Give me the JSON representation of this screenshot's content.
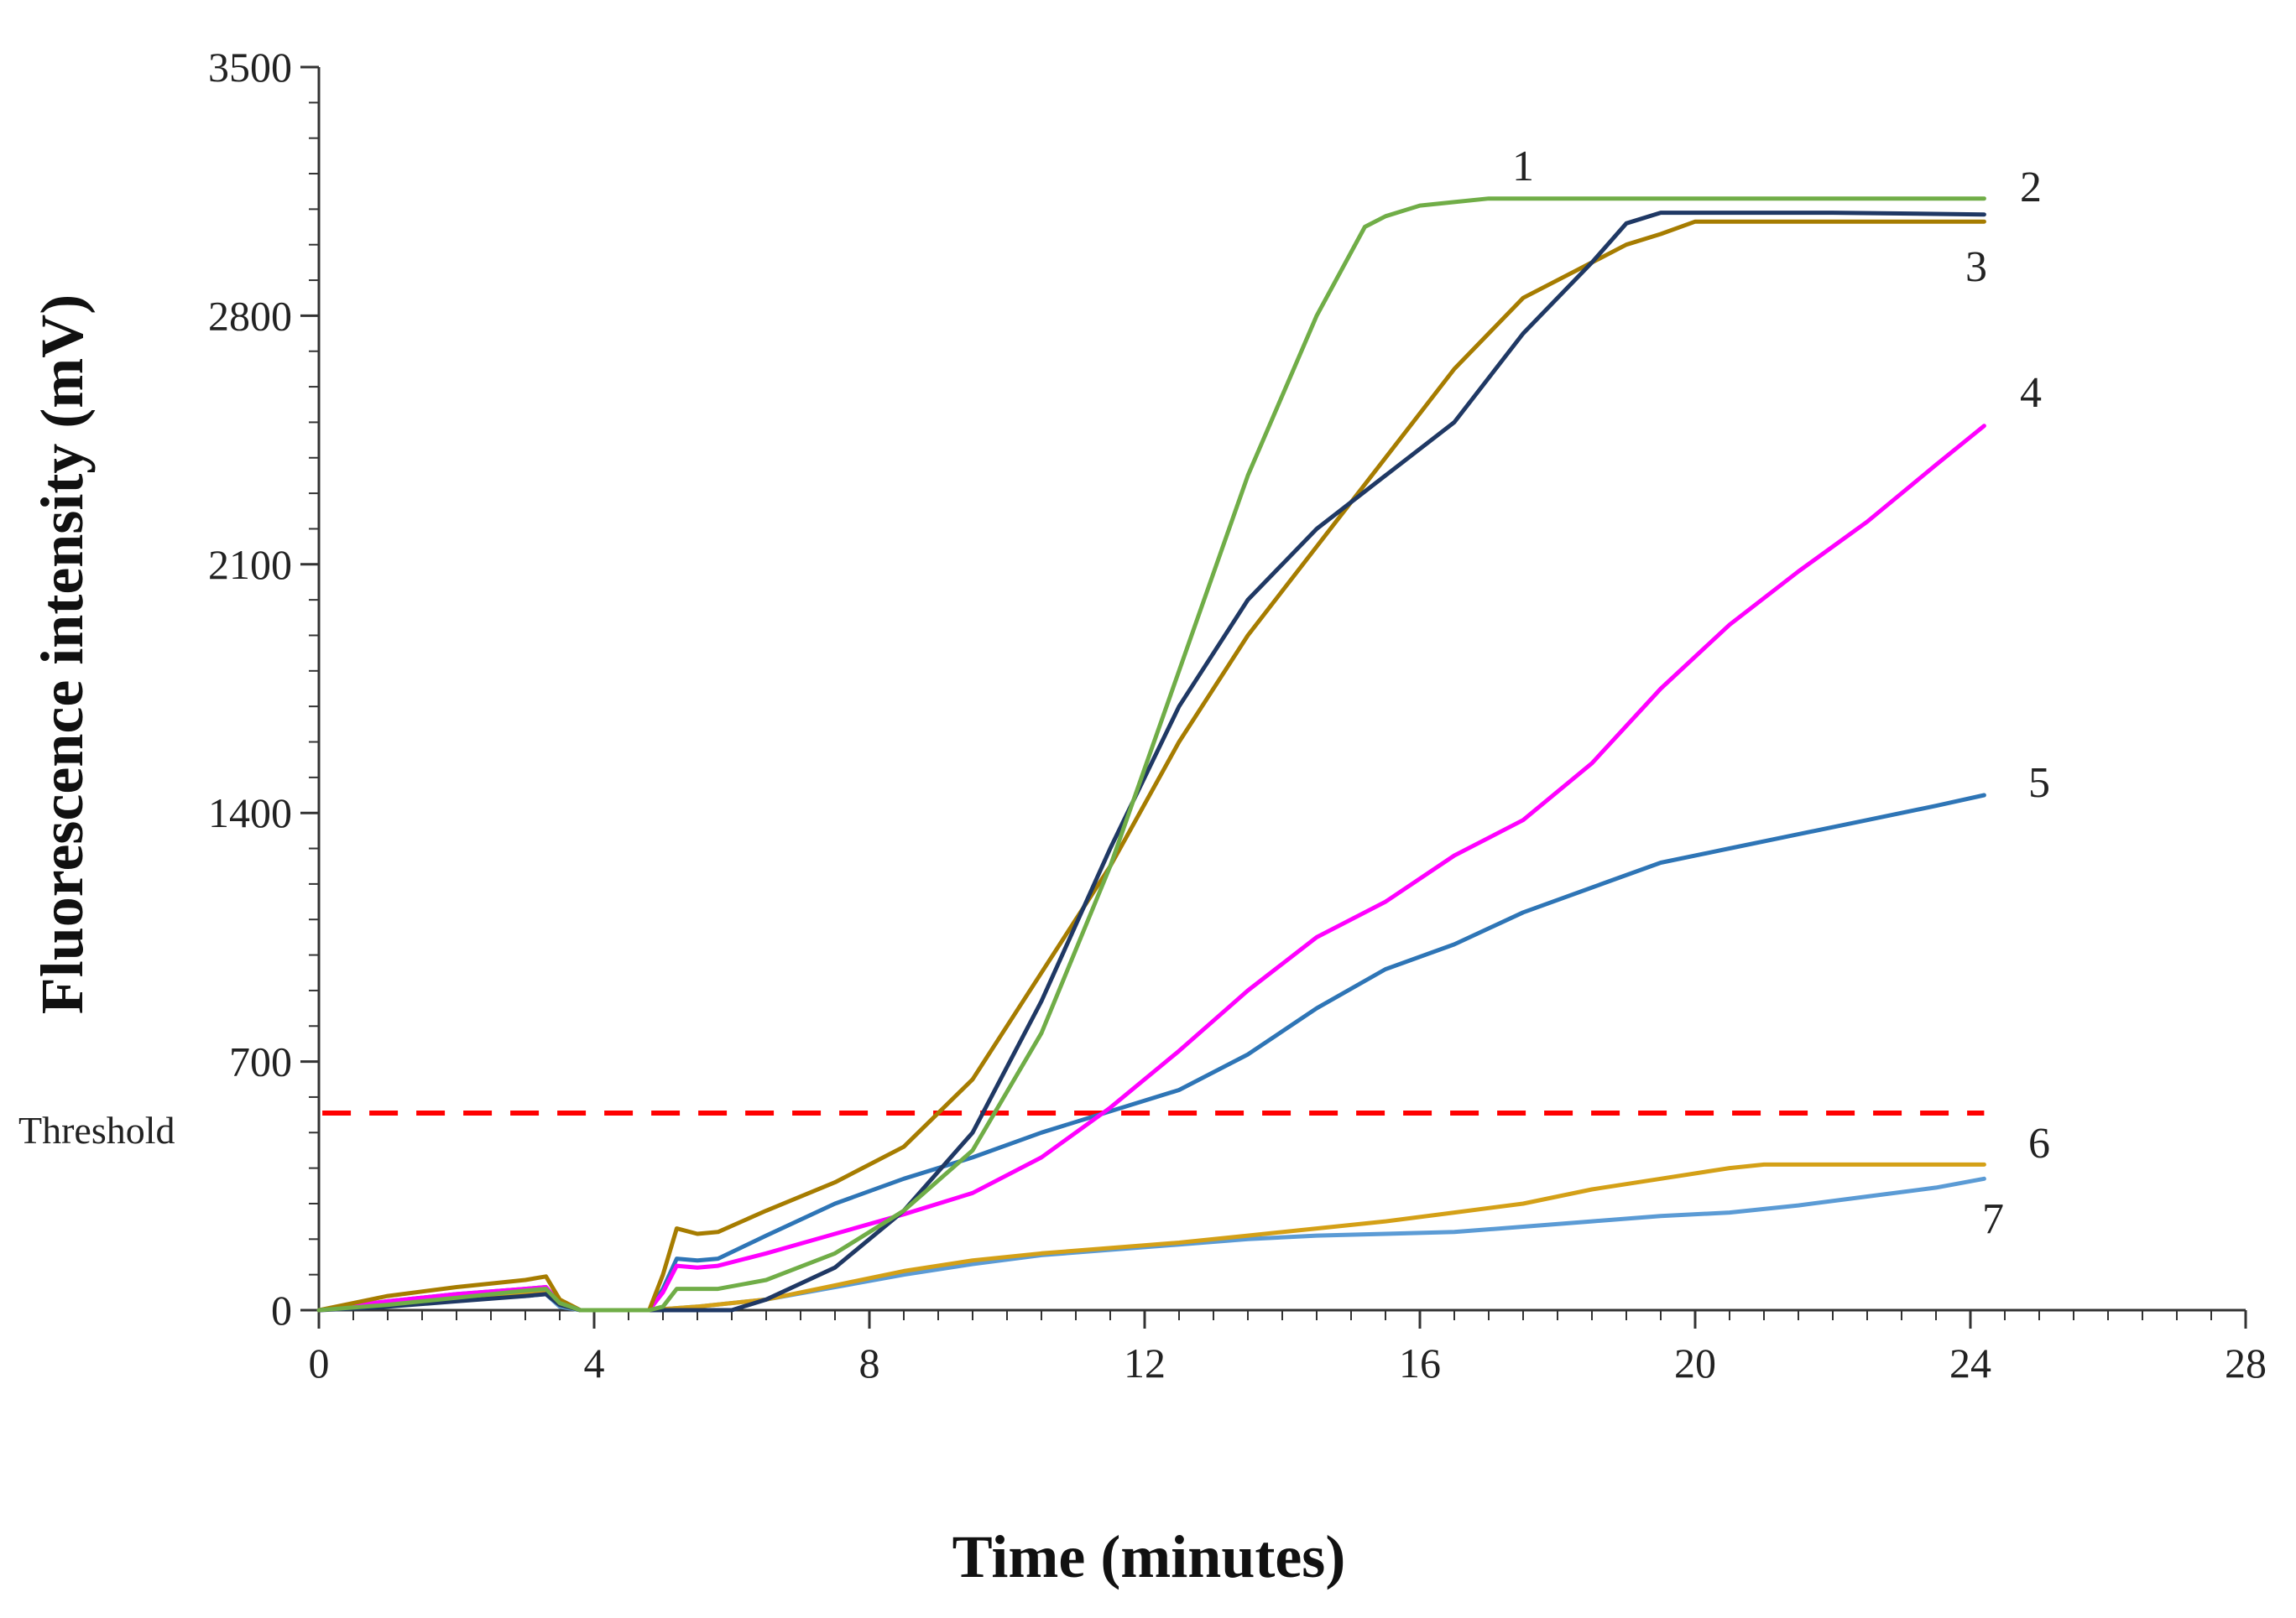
{
  "chart_data": {
    "type": "line",
    "title": "",
    "xlabel": "Time (minutes)",
    "ylabel": "Fluorescence intensity (mV)",
    "xlim": [
      0,
      28
    ],
    "ylim": [
      0,
      3500
    ],
    "xticks": [
      0,
      4,
      8,
      12,
      16,
      20,
      24,
      28
    ],
    "yticks": [
      0,
      700,
      1400,
      2100,
      2800,
      3500
    ],
    "grid": false,
    "threshold": {
      "label": "Threshold",
      "value": 555,
      "x_end": 24.2,
      "color": "#ff0000"
    },
    "series": [
      {
        "name": "1",
        "color": "#70ad47",
        "x": [
          0,
          1,
          2,
          3,
          3.3,
          3.5,
          3.8,
          4.8,
          5.0,
          5.2,
          5.8,
          6.5,
          7.5,
          8.5,
          9.5,
          10.5,
          11.5,
          12.5,
          13.5,
          14.5,
          15.2,
          15.5,
          16,
          16.5,
          17,
          18,
          20,
          22,
          24.2
        ],
        "y": [
          0,
          15,
          35,
          55,
          60,
          20,
          0,
          0,
          10,
          60,
          60,
          85,
          160,
          280,
          450,
          780,
          1250,
          1800,
          2350,
          2800,
          3050,
          3080,
          3110,
          3120,
          3130,
          3130,
          3130,
          3130,
          3130
        ]
      },
      {
        "name": "2",
        "color": "#1f3864",
        "x": [
          0,
          1,
          2,
          3,
          3.3,
          3.5,
          3.8,
          4.8,
          5.0,
          5.5,
          6.0,
          6.5,
          7.5,
          8.5,
          9.5,
          10.5,
          11.5,
          12.5,
          13.5,
          14.5,
          15.5,
          16.5,
          17.5,
          18.5,
          19.0,
          19.5,
          20,
          22,
          24.2
        ],
        "y": [
          0,
          10,
          25,
          40,
          45,
          15,
          0,
          0,
          0,
          0,
          0,
          30,
          120,
          280,
          500,
          870,
          1300,
          1700,
          2000,
          2200,
          2350,
          2500,
          2750,
          2950,
          3060,
          3090,
          3090,
          3090,
          3085
        ]
      },
      {
        "name": "3",
        "color": "#a67c00",
        "x": [
          0,
          1,
          2,
          3,
          3.3,
          3.5,
          3.8,
          4.8,
          5.0,
          5.2,
          5.5,
          5.8,
          6.5,
          7.5,
          8.5,
          9.5,
          10.5,
          11.5,
          12.5,
          13.5,
          14.5,
          15.5,
          16.5,
          17.5,
          18.5,
          19.0,
          19.5,
          20.0,
          22,
          24.2
        ],
        "y": [
          0,
          40,
          65,
          85,
          95,
          30,
          0,
          0,
          100,
          230,
          215,
          220,
          280,
          360,
          460,
          650,
          950,
          1250,
          1600,
          1900,
          2150,
          2400,
          2650,
          2850,
          2950,
          3000,
          3030,
          3065,
          3065,
          3065
        ]
      },
      {
        "name": "4",
        "color": "#ff00ff",
        "x": [
          0,
          1,
          2,
          3,
          3.3,
          3.5,
          3.8,
          4.8,
          5.0,
          5.2,
          5.5,
          5.8,
          6.5,
          7.5,
          8.5,
          9.5,
          10.5,
          11.5,
          12.5,
          13.5,
          14.5,
          15.5,
          16.5,
          17.5,
          18.5,
          19.5,
          20.5,
          21.5,
          22.5,
          23.5,
          24.2
        ],
        "y": [
          0,
          25,
          45,
          60,
          65,
          20,
          0,
          0,
          50,
          125,
          120,
          125,
          160,
          215,
          270,
          330,
          430,
          570,
          730,
          900,
          1050,
          1150,
          1280,
          1380,
          1540,
          1750,
          1930,
          2080,
          2220,
          2380,
          2490
        ]
      },
      {
        "name": "5",
        "color": "#2e75b6",
        "x": [
          0,
          1,
          2,
          3,
          3.3,
          3.5,
          3.8,
          4.8,
          5.0,
          5.2,
          5.5,
          5.8,
          6.5,
          7.5,
          8.5,
          9.5,
          10.5,
          11.5,
          12.5,
          13.5,
          14.5,
          15.5,
          16.5,
          17.5,
          18.5,
          19.5,
          20.5,
          21.5,
          22.5,
          23.5,
          24.2
        ],
        "y": [
          0,
          25,
          45,
          60,
          65,
          20,
          0,
          0,
          60,
          145,
          140,
          145,
          210,
          300,
          370,
          430,
          500,
          560,
          620,
          720,
          850,
          960,
          1030,
          1120,
          1190,
          1260,
          1300,
          1340,
          1380,
          1420,
          1450
        ]
      },
      {
        "name": "6",
        "color": "#d4a017",
        "x": [
          0,
          1,
          2,
          3,
          3.3,
          3.5,
          3.8,
          4.8,
          5.5,
          6.5,
          7.5,
          8.5,
          9.5,
          10.5,
          11.5,
          12.5,
          13.5,
          14.5,
          15.5,
          16.5,
          17.5,
          18.5,
          19.5,
          20.5,
          21.0,
          22,
          23,
          24.2
        ],
        "y": [
          0,
          20,
          35,
          45,
          50,
          15,
          0,
          0,
          10,
          30,
          70,
          110,
          140,
          160,
          175,
          190,
          210,
          230,
          250,
          275,
          300,
          340,
          370,
          400,
          410,
          410,
          410,
          410
        ]
      },
      {
        "name": "7",
        "color": "#5b9bd5",
        "x": [
          0,
          1,
          2,
          3,
          3.3,
          3.5,
          3.8,
          4.8,
          5.5,
          6.5,
          7.5,
          8.5,
          9.5,
          10.5,
          11.5,
          12.5,
          13.5,
          14.5,
          15.5,
          16.5,
          17.5,
          18.5,
          19.5,
          20.5,
          21.5,
          22.5,
          23.5,
          24.2
        ],
        "y": [
          0,
          15,
          30,
          40,
          45,
          10,
          0,
          0,
          10,
          30,
          65,
          100,
          130,
          155,
          170,
          185,
          200,
          210,
          215,
          220,
          235,
          250,
          265,
          275,
          295,
          320,
          345,
          370
        ]
      }
    ]
  }
}
